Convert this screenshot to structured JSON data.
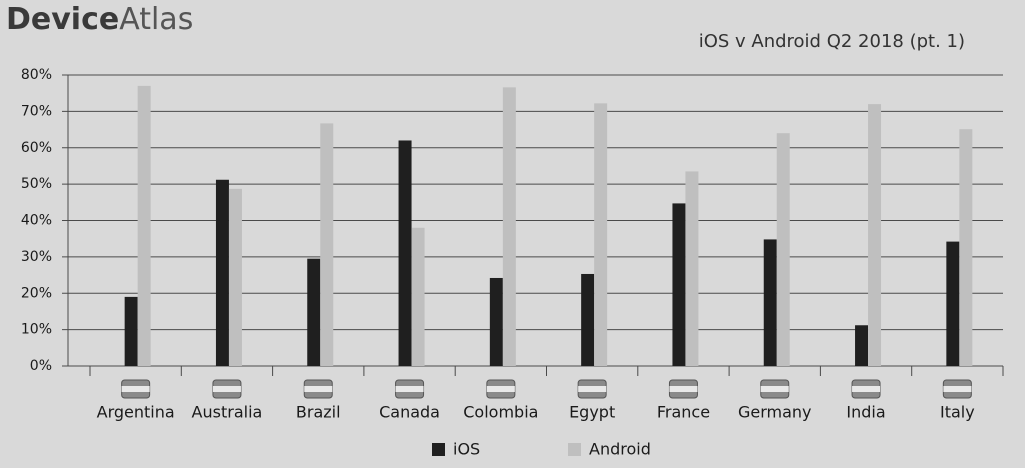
{
  "logo": {
    "bold": "Device",
    "light": "Atlas"
  },
  "chart_data": {
    "type": "bar",
    "title": "iOS v Android Q2 2018  (pt. 1)",
    "categories": [
      "Argentina",
      "Australia",
      "Brazil",
      "Canada",
      "Colombia",
      "Egypt",
      "France",
      "Germany",
      "India",
      "Italy"
    ],
    "series": [
      {
        "name": "iOS",
        "color": "#1f1f1f",
        "values": [
          19,
          51.2,
          29.5,
          62,
          24.2,
          25.3,
          44.7,
          34.8,
          11.2,
          34.2
        ]
      },
      {
        "name": "Android",
        "color": "#bfbfbf",
        "values": [
          77,
          48.7,
          66.7,
          38,
          76.6,
          72.2,
          53.5,
          64,
          72,
          65.1
        ]
      }
    ],
    "ylim": [
      0,
      80
    ],
    "yticks": [
      {
        "value": 0,
        "label": "0%"
      },
      {
        "value": 10,
        "label": "10%"
      },
      {
        "value": 20,
        "label": "20%"
      },
      {
        "value": 30,
        "label": "30%"
      },
      {
        "value": 40,
        "label": "40%"
      },
      {
        "value": 50,
        "label": "50%"
      },
      {
        "value": 60,
        "label": "60%"
      },
      {
        "value": 70,
        "label": "70%"
      },
      {
        "value": 80,
        "label": "80%"
      }
    ],
    "grid": true
  }
}
